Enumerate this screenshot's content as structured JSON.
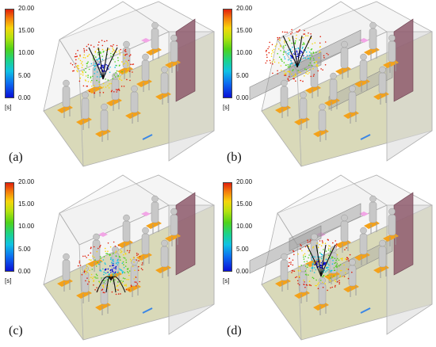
{
  "colorbar": {
    "ticks": [
      "20.00",
      "15.00",
      "10.00",
      "5.00",
      "0.00"
    ],
    "unit": "[s]",
    "colors": [
      "#0a10d6",
      "#10c2e3",
      "#4fd21a",
      "#f6d50c",
      "#e0200b"
    ]
  },
  "panels": [
    {
      "label": "(a)",
      "partitions": false
    },
    {
      "label": "(b)",
      "partitions": true
    },
    {
      "label": "(c)",
      "partitions": false
    },
    {
      "label": "(d)",
      "partitions": true
    }
  ],
  "colors": {
    "floor": "#d9d9b9",
    "room_edge": "#b0b0b0",
    "door": "#8e5a6c",
    "seat": "#f4a21a",
    "mannequin": "#c8c8c8",
    "vent": "#f2a6e6"
  }
}
